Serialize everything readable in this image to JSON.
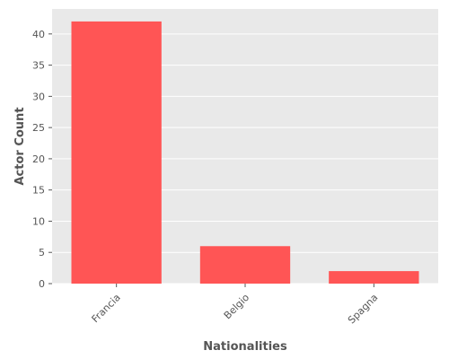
{
  "chart_data": {
    "type": "bar",
    "title": "",
    "xlabel": "Nationalities",
    "ylabel": "Actor Count",
    "categories": [
      "Francia",
      "Belgio",
      "Spagna"
    ],
    "values": [
      42,
      6,
      2
    ],
    "ylim": [
      0,
      44
    ],
    "yticks": [
      0,
      5,
      10,
      15,
      20,
      25,
      30,
      35,
      40
    ],
    "grid": true,
    "bar_color": "#ff5555",
    "plot_background": "#e9e9e9",
    "grid_color": "#ffffff"
  }
}
